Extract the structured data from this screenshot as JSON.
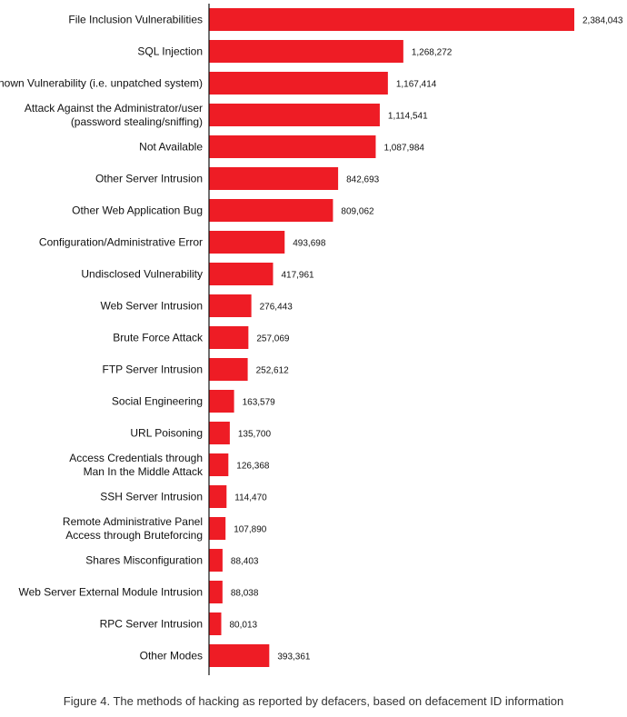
{
  "chart_data": {
    "type": "bar",
    "orientation": "horizontal",
    "bar_color": "#ee1c25",
    "categories": [
      [
        "File Inclusion Vulnerabilities"
      ],
      [
        "SQL Injection"
      ],
      [
        "Known Vulnerability (i.e. unpatched system)"
      ],
      [
        "Attack Against the Administrator/user",
        "(password stealing/sniffing)"
      ],
      [
        "Not Available"
      ],
      [
        "Other Server Intrusion"
      ],
      [
        "Other Web Application Bug"
      ],
      [
        "Configuration/Administrative Error"
      ],
      [
        "Undisclosed Vulnerability"
      ],
      [
        "Web Server Intrusion"
      ],
      [
        "Brute Force Attack"
      ],
      [
        "FTP Server Intrusion"
      ],
      [
        "Social Engineering"
      ],
      [
        "URL Poisoning"
      ],
      [
        "Access Credentials through",
        "Man In the Middle Attack"
      ],
      [
        "SSH Server Intrusion"
      ],
      [
        "Remote Administrative Panel",
        "Access through Bruteforcing"
      ],
      [
        "Shares Misconfiguration"
      ],
      [
        "Web Server External Module Intrusion"
      ],
      [
        "RPC Server Intrusion"
      ],
      [
        "Other Modes"
      ]
    ],
    "values": [
      2384043,
      1268272,
      1167414,
      1114541,
      1087984,
      842693,
      809062,
      493698,
      417961,
      276443,
      257069,
      252612,
      163579,
      135700,
      126368,
      114470,
      107890,
      88403,
      88038,
      80013,
      393361
    ],
    "value_labels": [
      "2,384,043",
      "1,268,272",
      "1,167,414",
      "1,114,541",
      "1,087,984",
      "842,693",
      "809,062",
      "493,698",
      "417,961",
      "276,443",
      "257,069",
      "252,612",
      "163,579",
      "135,700",
      "126,368",
      "114,470",
      "107,890",
      "88,403",
      "88,038",
      "80,013",
      "393,361"
    ],
    "xlim": [
      0,
      2384043
    ],
    "grid": false,
    "legend": "none"
  },
  "caption": "Figure 4. The methods of hacking as reported by defacers, based on defacement ID information"
}
